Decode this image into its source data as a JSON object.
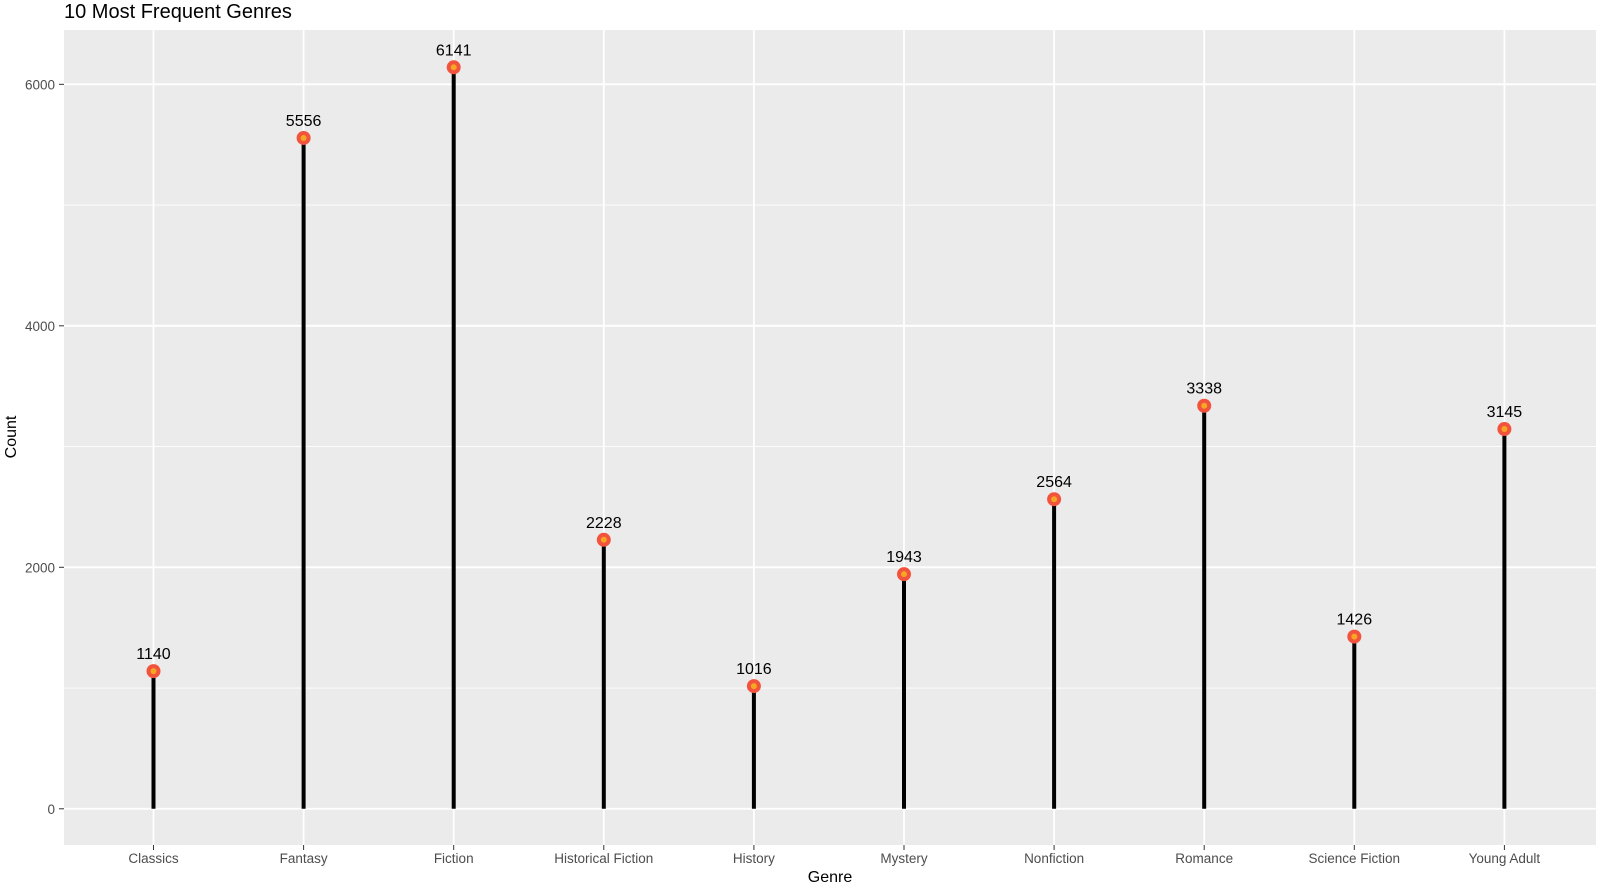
{
  "chart_data": {
    "type": "lollipop",
    "title": "10 Most Frequent Genres",
    "xlabel": "Genre",
    "ylabel": "Count",
    "categories": [
      "Classics",
      "Fantasy",
      "Fiction",
      "Historical Fiction",
      "History",
      "Mystery",
      "Nonfiction",
      "Romance",
      "Science Fiction",
      "Young Adult"
    ],
    "values": [
      1140,
      5556,
      6141,
      2228,
      1016,
      1943,
      2564,
      3338,
      1426,
      3145
    ],
    "data_labels": [
      "1140",
      "5556",
      "6141",
      "2228",
      "1016",
      "1943",
      "2564",
      "3338",
      "1426",
      "3145"
    ],
    "ylim": [
      -300,
      6450
    ],
    "yticks": [
      0,
      2000,
      4000,
      6000
    ],
    "ytick_labels": [
      "0",
      "2000",
      "4000",
      "6000"
    ],
    "grid": true,
    "legend": "none",
    "colors": {
      "panel_background": "#ebebeb",
      "grid": "#ffffff",
      "stem": "#000000",
      "point_outer": "#f2533d",
      "point_inner": "#f5a623"
    }
  }
}
